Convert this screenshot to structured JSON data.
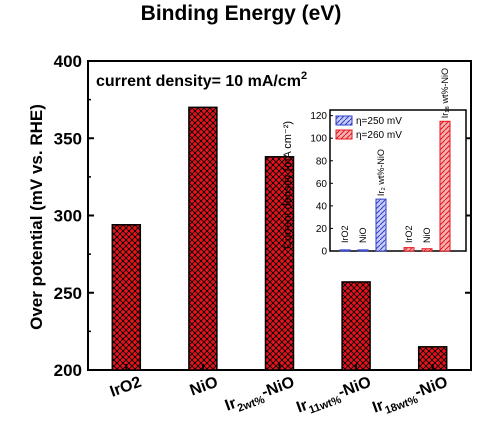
{
  "chart_data": [
    {
      "type": "bar",
      "title": "Binding Energy (eV)",
      "annotation": "current density= 10 mA/cm",
      "annotation_sup": "2",
      "ylabel": "Over potential (mV vs. RHE)",
      "ylim": [
        200,
        400
      ],
      "yticks": [
        "200",
        "250",
        "300",
        "350",
        "400"
      ],
      "categories": [
        {
          "main": "IrO2",
          "sub": "",
          "tail": ""
        },
        {
          "main": "NiO",
          "sub": "",
          "tail": ""
        },
        {
          "main": "Ir",
          "sub": "2wt%",
          "tail": "-NiO"
        },
        {
          "main": "Ir",
          "sub": "11wt%",
          "tail": "-NiO"
        },
        {
          "main": "Ir",
          "sub": "18wt%",
          "tail": "-NiO"
        }
      ],
      "values": [
        294,
        370,
        338,
        257,
        215
      ],
      "bar_color": "#e8141c",
      "grid": false
    },
    {
      "type": "bar",
      "ylabel": "Current density (mA cm⁻²)",
      "ylim": [
        0,
        125
      ],
      "yticks": [
        "0",
        "20",
        "40",
        "60",
        "80",
        "100",
        "120"
      ],
      "legend_position": "top-left",
      "series": [
        {
          "name": "η=250 mV",
          "color": "#2f3fc9",
          "bar_labels": [
            "IrO2",
            "NiO",
            "Ir₂ wt%-NiO"
          ],
          "values": [
            1,
            1,
            46
          ]
        },
        {
          "name": "η=260 mV",
          "color": "#e8141c",
          "bar_labels": [
            "IrO2",
            "NiO",
            "Ir₁₈ wt%-NiO"
          ],
          "values": [
            3,
            2,
            115
          ]
        }
      ]
    }
  ]
}
